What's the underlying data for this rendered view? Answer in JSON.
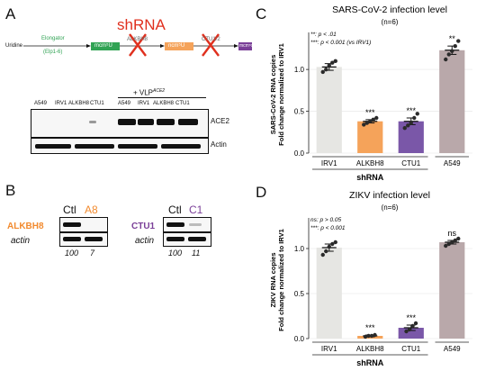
{
  "panels": {
    "a": "A",
    "b": "B",
    "c": "C",
    "d": "D"
  },
  "panelA": {
    "shrna_title": "shRNA",
    "uridine": "Uridine",
    "elongator": "Elongator",
    "elp": "(Elp1-6)",
    "mcm5u": "mcm⁵U",
    "ncm5u": "ncm⁵U",
    "mcm5s2u": "mcm⁵s²U",
    "enzyme2": "ALKBH8",
    "enzyme3": "CTU1/2",
    "vlp_label": "+ VLP",
    "vlp_sup": "ACE2",
    "lanes": [
      "A549",
      "IRV1",
      "ALKBH8",
      "CTU1",
      "A549",
      "IRV1",
      "ALKBH8",
      "CTU1"
    ],
    "ace2": "ACE2",
    "actin": "Actin"
  },
  "panelB": {
    "left": {
      "gene": "ALKBH8",
      "ctl": "Ctl",
      "kd": "A8",
      "actin": "actin",
      "q_ctl": "100",
      "q_kd": "7"
    },
    "right": {
      "gene": "CTU1",
      "ctl": "Ctl",
      "kd": "C1",
      "actin": "actin",
      "q_ctl": "100",
      "q_kd": "11"
    }
  },
  "colors": {
    "irv1": "#e6e6e3",
    "alkbh8": "#f5a35a",
    "ctu1": "#7a57a8",
    "a549": "#b9a8aa",
    "shrna_red": "#e0301e",
    "orange_text": "#f28a2e",
    "purple_text": "#7a3f98"
  },
  "chart_data": [
    {
      "type": "bar",
      "title": "SARS-CoV-2 infection level",
      "subtitle": "(n=6)",
      "ylabel_line1": "SARS-CoV-2 RNA copies",
      "ylabel_line2": "Fold change normalized to IRV1",
      "xgroup_label": "shRNA",
      "categories": [
        "IRV1",
        "ALKBH8",
        "CTU1",
        "A549"
      ],
      "values": [
        1.03,
        0.38,
        0.38,
        1.23
      ],
      "errors": [
        0.04,
        0.02,
        0.04,
        0.05
      ],
      "points": [
        [
          0.97,
          1.0,
          1.05,
          1.08,
          1.1
        ],
        [
          0.34,
          0.36,
          0.38,
          0.4,
          0.42
        ],
        [
          0.3,
          0.33,
          0.36,
          0.42,
          0.47
        ],
        [
          1.12,
          1.18,
          1.22,
          1.28,
          1.34
        ]
      ],
      "significance": [
        "",
        "***",
        "***",
        "**"
      ],
      "legend_lines": [
        "**:  p < .01",
        "***:  p < 0.001 (vs IRV1)"
      ],
      "ylim": [
        0,
        1.4
      ],
      "yticks": [
        "0.0",
        "0.5",
        "1.0"
      ],
      "ytick_values": [
        0,
        0.5,
        1.0
      ],
      "grid": true
    },
    {
      "type": "bar",
      "title": "ZIKV infection level",
      "subtitle": "(n=6)",
      "ylabel_line1": "ZIKV RNA copies",
      "ylabel_line2": "Fold change normalized to IRV1",
      "xgroup_label": "shRNA",
      "categories": [
        "IRV1",
        "ALKBH8",
        "CTU1",
        "A549"
      ],
      "values": [
        1.01,
        0.03,
        0.12,
        1.07
      ],
      "errors": [
        0.04,
        0.01,
        0.03,
        0.02
      ],
      "points": [
        [
          0.93,
          0.97,
          1.02,
          1.05,
          1.07
        ],
        [
          0.02,
          0.03,
          0.03,
          0.04
        ],
        [
          0.08,
          0.1,
          0.14,
          0.17
        ],
        [
          1.03,
          1.05,
          1.07,
          1.09,
          1.11
        ]
      ],
      "significance": [
        "",
        "***",
        "***",
        "ns"
      ],
      "legend_lines": [
        "ns:  p > 0.05",
        "***:  p < 0.001"
      ],
      "ylim": [
        0,
        1.3
      ],
      "yticks": [
        "0.0",
        "0.5",
        "1.0"
      ],
      "ytick_values": [
        0,
        0.5,
        1.0
      ],
      "grid": true
    }
  ]
}
